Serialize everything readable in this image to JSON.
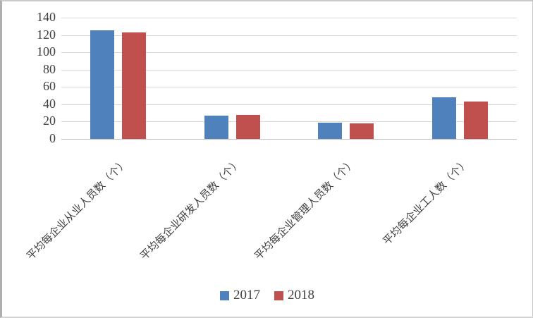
{
  "chart_data": {
    "type": "bar",
    "title": "",
    "xlabel": "",
    "ylabel": "",
    "categories": [
      "平均每企业从业人员数（个）",
      "平均每企业研发人员数（个）",
      "平均每企业管理人员数（个）",
      "平均每企业工人数（个）"
    ],
    "series": [
      {
        "name": "2017",
        "color": "#4F81BD",
        "values": [
          125,
          27,
          19,
          48
        ]
      },
      {
        "name": "2018",
        "color": "#C0504D",
        "values": [
          123,
          28,
          18,
          43
        ]
      }
    ],
    "ylim": [
      0,
      140
    ],
    "yticks": [
      0,
      20,
      40,
      60,
      80,
      100,
      120,
      140
    ],
    "grid": "horizontal-only",
    "legend_position": "bottom-center"
  },
  "colors": {
    "gridline": "#d9d9d9",
    "axis_line": "#bfbfbf",
    "tick_text": "#3f3f3f",
    "legend_text": "#404040",
    "background": "#ffffff"
  }
}
